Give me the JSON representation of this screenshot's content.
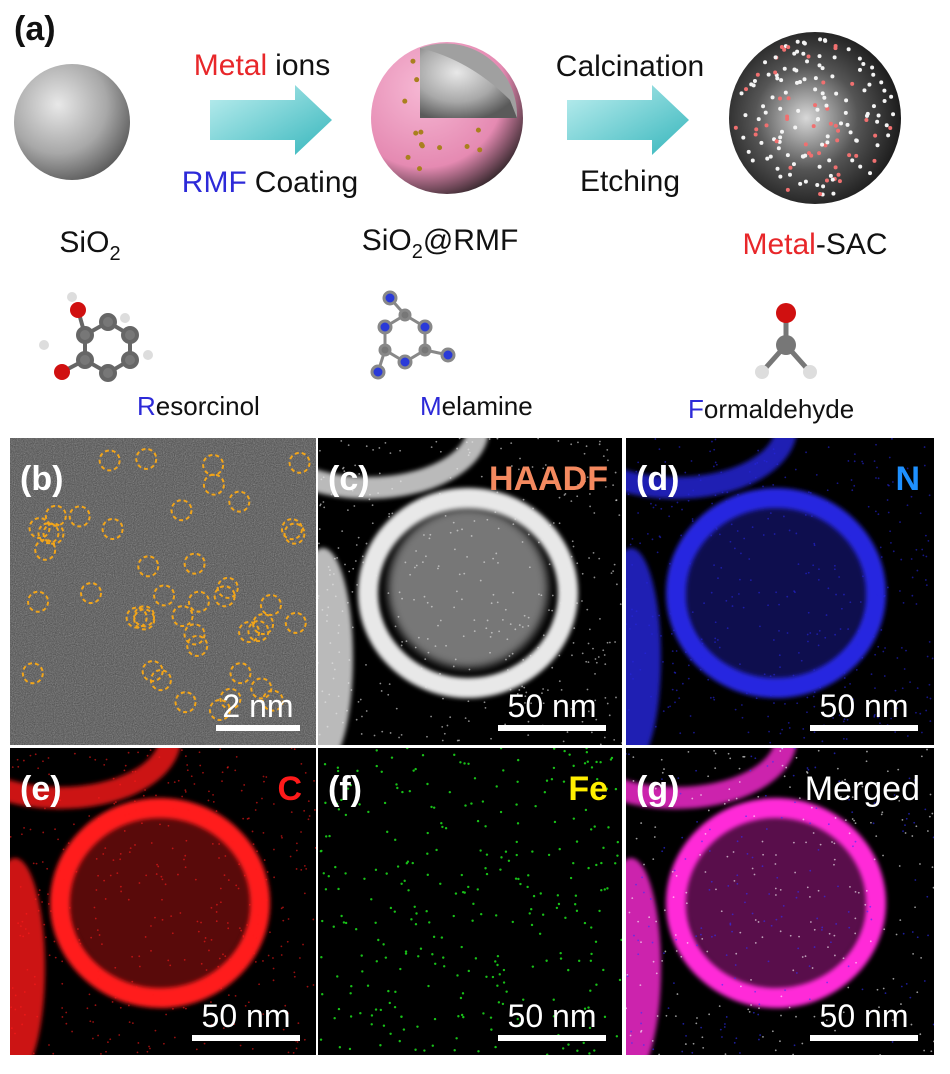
{
  "panel_a": {
    "label": "(a)",
    "step1": {
      "top": [
        "Metal",
        "ions"
      ],
      "bottom": [
        "RMF",
        "Coating"
      ]
    },
    "step2": {
      "top": "Calcination",
      "bottom": "Etching"
    },
    "sio2": [
      "SiO",
      "2"
    ],
    "sio2_rmf": [
      "SiO",
      "2",
      "@RMF"
    ],
    "sac": [
      "Metal",
      "-SAC"
    ],
    "molecules": [
      [
        "R",
        "esorcinol"
      ],
      [
        "M",
        "elamine"
      ],
      [
        "F",
        "ormaldehyde"
      ]
    ]
  },
  "panels": [
    {
      "label": "(b)",
      "scale": "2 nm"
    },
    {
      "label": "(c)",
      "channel": "HAADF",
      "scale": "50 nm"
    },
    {
      "label": "(d)",
      "channel": "N",
      "scale": "50 nm"
    },
    {
      "label": "(e)",
      "channel": "C",
      "scale": "50 nm"
    },
    {
      "label": "(f)",
      "channel": "Fe",
      "scale": "50 nm"
    },
    {
      "label": "(g)",
      "channel": "Merged",
      "scale": "50 nm"
    }
  ]
}
